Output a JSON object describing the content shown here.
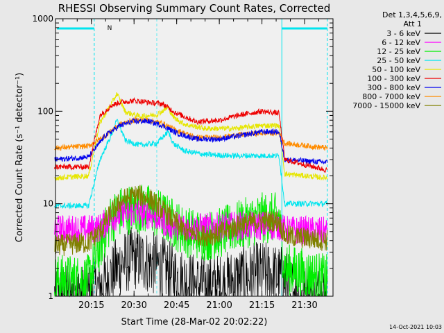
{
  "chart_data": {
    "type": "line",
    "title": "RHESSI Observing Summary Count Rates, Corrected",
    "ylabel": "Corrected Count Rate (s⁻¹ detector⁻¹)",
    "xlabel": "Start Time (28-Mar-02 20:02:22)",
    "yscale": "log",
    "ylim": [
      1,
      1000
    ],
    "xlim": [
      "20:02:22",
      "21:40:00"
    ],
    "y_ticks": [
      "1",
      "10",
      "100",
      "1000"
    ],
    "x_ticks": [
      "20:15",
      "20:30",
      "20:45",
      "21:00",
      "21:15",
      "21:30"
    ],
    "legend_placement": "right",
    "legend_header": [
      "Det 1,3,4,5,6,9,",
      "Att 1"
    ],
    "annotation": "N",
    "timestamp": "14-Oct-2021 10:03",
    "background_color": "#f0f0f0",
    "attenuator_color": "#00e5ee",
    "series": [
      {
        "name": "3 - 6 keV",
        "color": "#000000",
        "x": [
          "20:02",
          "20:14",
          "20:20",
          "20:25",
          "20:30",
          "20:38",
          "20:45",
          "20:52",
          "21:00",
          "21:08",
          "21:15",
          "21:22",
          "21:28",
          "21:38"
        ],
        "y": [
          1,
          1,
          1.4,
          2.2,
          2.6,
          2.2,
          1.6,
          1.3,
          1.3,
          1.6,
          1.8,
          1.6,
          1,
          1
        ]
      },
      {
        "name": "6 - 12 keV",
        "color": "#ff00ff",
        "x": [
          "20:02",
          "20:14",
          "20:18",
          "20:22",
          "20:27",
          "20:32",
          "20:37",
          "20:42",
          "20:50",
          "21:00",
          "21:08",
          "21:15",
          "21:21",
          "21:23",
          "21:38"
        ],
        "y": [
          5.3,
          5.3,
          5.5,
          7,
          8,
          8,
          7.5,
          6,
          5.5,
          5.6,
          5.8,
          5.8,
          5.8,
          5.2,
          5
        ]
      },
      {
        "name": "12 - 25 keV",
        "color": "#00ee00",
        "x": [
          "20:02",
          "20:14",
          "20:18",
          "20:22",
          "20:26",
          "20:31",
          "20:36",
          "20:41",
          "20:48",
          "20:55",
          "21:00",
          "21:08",
          "21:15",
          "21:21",
          "21:23",
          "21:38"
        ],
        "y": [
          1.5,
          1.5,
          3.5,
          7,
          8.5,
          9,
          8.5,
          7,
          5,
          4.5,
          4.8,
          6,
          7,
          7,
          2,
          1.5
        ]
      },
      {
        "name": "25 - 50 keV",
        "color": "#00e5ee",
        "x": [
          "20:02",
          "20:14",
          "20:18",
          "20:22",
          "20:24",
          "20:27",
          "20:32",
          "20:38",
          "20:42",
          "20:44",
          "20:48",
          "20:55",
          "21:05",
          "21:15",
          "21:21",
          "21:23",
          "21:38"
        ],
        "y": [
          9.5,
          9.5,
          30,
          55,
          80,
          48,
          43,
          45,
          60,
          44,
          37,
          34,
          33,
          33,
          33,
          10,
          10
        ]
      },
      {
        "name": "50 - 100 keV",
        "color": "#e6e600",
        "x": [
          "20:02",
          "20:14",
          "20:18",
          "20:22",
          "20:24",
          "20:27",
          "20:32",
          "20:38",
          "20:42",
          "20:44",
          "20:48",
          "20:55",
          "21:05",
          "21:15",
          "21:21",
          "21:23",
          "21:38"
        ],
        "y": [
          19,
          20,
          75,
          120,
          155,
          98,
          88,
          92,
          110,
          85,
          72,
          65,
          65,
          70,
          70,
          21,
          19
        ]
      },
      {
        "name": "100 - 300 keV",
        "color": "#ee0000",
        "x": [
          "20:02",
          "20:14",
          "20:18",
          "20:22",
          "20:25",
          "20:30",
          "20:35",
          "20:40",
          "20:45",
          "20:52",
          "21:00",
          "21:08",
          "21:15",
          "21:21",
          "21:23",
          "21:38"
        ],
        "y": [
          25,
          25,
          90,
          115,
          125,
          130,
          125,
          120,
          95,
          77,
          80,
          92,
          100,
          95,
          30,
          23
        ]
      },
      {
        "name": "300 - 800 keV",
        "color": "#0000ee",
        "x": [
          "20:02",
          "20:14",
          "20:20",
          "20:25",
          "20:30",
          "20:35",
          "20:40",
          "20:45",
          "20:52",
          "21:00",
          "21:08",
          "21:15",
          "21:21",
          "21:23",
          "21:38"
        ],
        "y": [
          30,
          32,
          55,
          70,
          78,
          78,
          70,
          58,
          50,
          50,
          55,
          60,
          60,
          30,
          28
        ]
      },
      {
        "name": "800 - 7000 keV",
        "color": "#ff8c00",
        "x": [
          "20:02",
          "20:14",
          "20:20",
          "20:25",
          "20:30",
          "20:35",
          "20:40",
          "20:45",
          "20:52",
          "21:00",
          "21:08",
          "21:15",
          "21:21",
          "21:23",
          "21:38"
        ],
        "y": [
          40,
          42,
          55,
          72,
          80,
          80,
          74,
          62,
          52,
          52,
          56,
          58,
          58,
          45,
          40
        ]
      },
      {
        "name": "7000 - 15000 keV",
        "color": "#808000",
        "x": [
          "20:02",
          "20:14",
          "20:18",
          "20:22",
          "20:26",
          "20:31",
          "20:36",
          "20:41",
          "20:48",
          "20:55",
          "21:00",
          "21:08",
          "21:15",
          "21:21",
          "21:23",
          "21:38"
        ],
        "y": [
          3.5,
          3.8,
          5,
          8,
          11,
          12.5,
          11,
          8,
          5,
          4.5,
          4.8,
          6,
          6.5,
          6.5,
          4.5,
          4
        ]
      }
    ]
  }
}
